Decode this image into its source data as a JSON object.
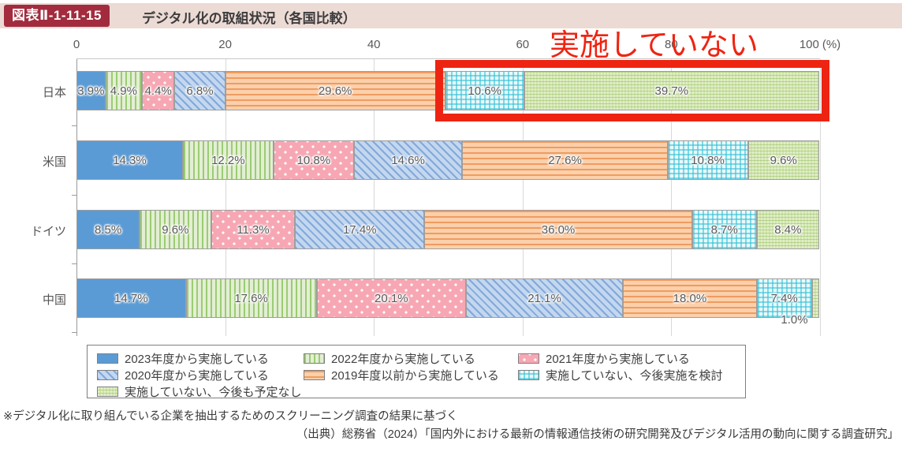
{
  "header": {
    "badge": "図表Ⅱ-1-11-15",
    "title": "デジタル化の取組状況（各国比較）"
  },
  "chart_data": {
    "type": "bar",
    "orientation": "horizontal",
    "stacked": true,
    "unit": "%",
    "xlim": [
      0,
      100
    ],
    "x_ticks": [
      0,
      20,
      40,
      60,
      80,
      100
    ],
    "x_axis_suffix": "(%)",
    "grid": true,
    "categories": [
      "日本",
      "米国",
      "ドイツ",
      "中国"
    ],
    "series": [
      {
        "name": "2023年度から実施している",
        "pattern": "solid-blue",
        "values": [
          3.9,
          14.3,
          8.5,
          14.7
        ]
      },
      {
        "name": "2022年度から実施している",
        "pattern": "vstripe-green",
        "values": [
          4.9,
          12.2,
          9.6,
          17.6
        ]
      },
      {
        "name": "2021年度から実施している",
        "pattern": "dots-pink",
        "values": [
          4.4,
          10.8,
          11.3,
          20.1
        ]
      },
      {
        "name": "2020年度から実施している",
        "pattern": "diag-blue",
        "values": [
          6.8,
          14.6,
          17.4,
          21.1
        ]
      },
      {
        "name": "2019年度以前から実施している",
        "pattern": "hstripe-orange",
        "values": [
          29.6,
          27.6,
          36.0,
          18.0
        ]
      },
      {
        "name": "実施していない、今後実施を検討",
        "pattern": "check-cyan",
        "values": [
          10.6,
          10.8,
          8.7,
          7.4
        ]
      },
      {
        "name": "実施していない、今後も予定なし",
        "pattern": "wave-green",
        "values": [
          39.7,
          9.6,
          8.4,
          1.0
        ]
      }
    ],
    "legend_position": "bottom"
  },
  "annotation": {
    "text": "実施していない",
    "color": "#ee2412"
  },
  "notes": {
    "line1": "※デジタル化に取り組んでいる企業を抽出するためのスクリーニング調査の結果に基づく",
    "line2": "（出典）総務省（2024）「国内外における最新の情報通信技術の研究開発及びデジタル活用の動向に関する調査研究」"
  }
}
